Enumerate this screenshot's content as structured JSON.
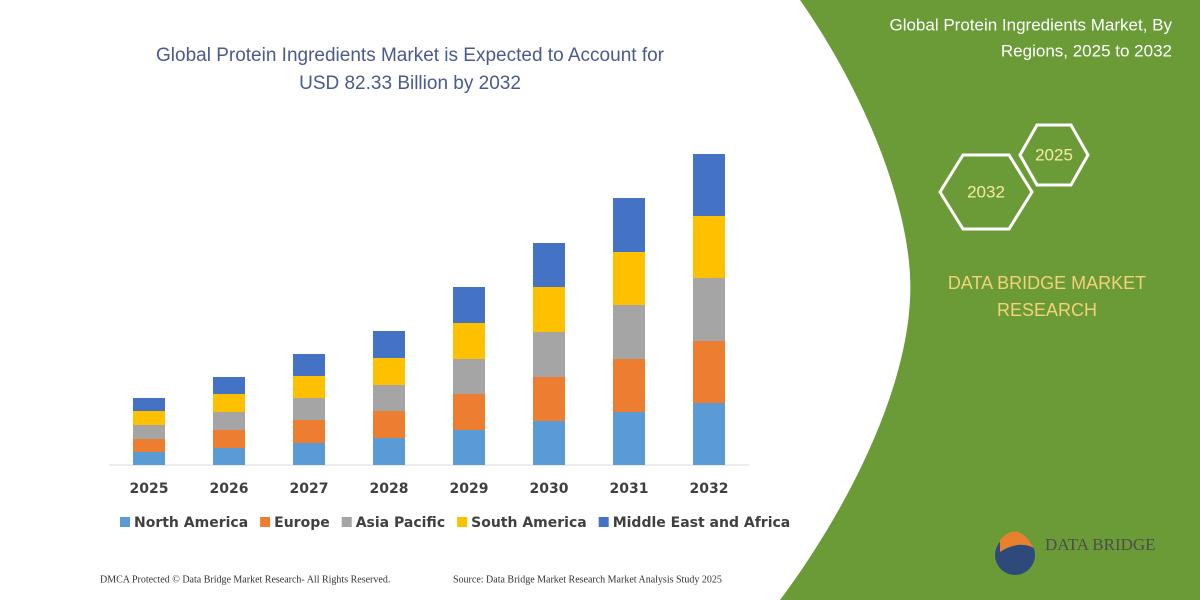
{
  "chart_data": {
    "type": "bar",
    "stacked": true,
    "title": [
      "Global Protein Ingredients Market is Expected to Account for",
      "USD 82.33 Billion by 2032"
    ],
    "categories": [
      "2025",
      "2026",
      "2027",
      "2028",
      "2029",
      "2030",
      "2031",
      "2032"
    ],
    "series": [
      {
        "name": "North America",
        "color": "#5b9bd5",
        "values": [
          13,
          17,
          22,
          27,
          35,
          44,
          53,
          62
        ]
      },
      {
        "name": "Europe",
        "color": "#ed7d31",
        "values": [
          13,
          18,
          23,
          27,
          36,
          44,
          53,
          62
        ]
      },
      {
        "name": "Asia Pacific",
        "color": "#a5a5a5",
        "values": [
          14,
          18,
          22,
          26,
          35,
          45,
          54,
          63
        ]
      },
      {
        "name": "South America",
        "color": "#ffc000",
        "values": [
          14,
          18,
          22,
          27,
          36,
          45,
          53,
          62
        ]
      },
      {
        "name": "Middle East and Africa",
        "color": "#4472c4",
        "values": [
          13,
          17,
          22,
          27,
          36,
          44,
          54,
          62
        ]
      }
    ]
  },
  "side_panel": {
    "title": [
      "Global Protein Ingredients Market, By",
      "Regions, 2025 to 2032"
    ],
    "hexagons": [
      "2025",
      "2032"
    ],
    "brand": [
      "DATA BRIDGE MARKET",
      "RESEARCH"
    ]
  },
  "logo_text": "DATA BRIDGE",
  "footer": {
    "copyright": "DMCA Protected © Data Bridge Market Research- All Rights Reserved.",
    "source": "Source: Data Bridge Market Research Market Analysis Study 2025"
  }
}
